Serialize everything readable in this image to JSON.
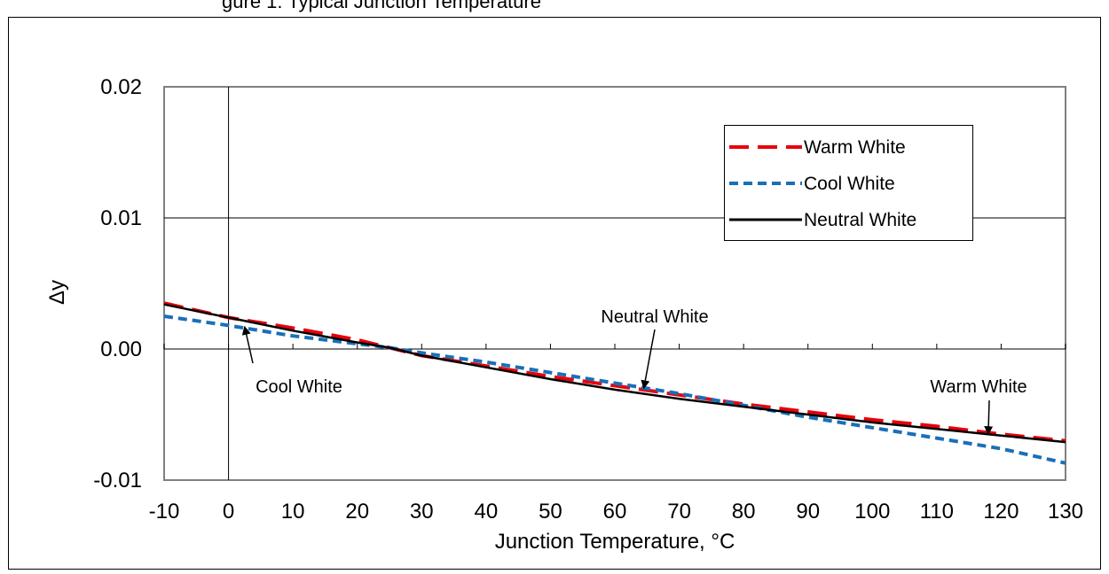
{
  "chart_data": {
    "type": "line",
    "title": "",
    "xlabel": "Junction Temperature, °C",
    "ylabel": "Δy",
    "xlim": [
      -10,
      130
    ],
    "ylim": [
      -0.01,
      0.02
    ],
    "x_ticks": [
      -10,
      0,
      10,
      20,
      30,
      40,
      50,
      60,
      70,
      80,
      90,
      100,
      110,
      120,
      130
    ],
    "x_tick_labels": [
      "-10",
      "0",
      "10",
      "20",
      "30",
      "40",
      "50",
      "60",
      "70",
      "80",
      "90",
      "100",
      "110",
      "120",
      "130"
    ],
    "y_ticks": [
      -0.01,
      0.0,
      0.01,
      0.02
    ],
    "y_tick_labels": [
      "-0.01",
      "0.00",
      "0.01",
      "0.02"
    ],
    "grid": "horizontal",
    "legend_position": "top-right",
    "series": [
      {
        "name": "Warm White",
        "color": "#e8000b",
        "dash": "long-dash",
        "x": [
          -10,
          0,
          10,
          20,
          25,
          30,
          40,
          50,
          60,
          70,
          80,
          90,
          100,
          110,
          120,
          130
        ],
        "y": [
          0.0035,
          0.0024,
          0.0016,
          0.0007,
          0.0001,
          -0.0005,
          -0.0013,
          -0.0021,
          -0.0028,
          -0.0035,
          -0.0042,
          -0.0048,
          -0.0054,
          -0.0059,
          -0.0065,
          -0.007
        ]
      },
      {
        "name": "Cool White",
        "color": "#1a6fb8",
        "dash": "short-dash",
        "x": [
          -10,
          0,
          10,
          20,
          25,
          30,
          40,
          50,
          60,
          70,
          80,
          90,
          100,
          110,
          120,
          130
        ],
        "y": [
          0.0025,
          0.0018,
          0.001,
          0.0004,
          0.0001,
          -0.0003,
          -0.001,
          -0.0018,
          -0.0026,
          -0.0034,
          -0.0043,
          -0.0052,
          -0.006,
          -0.0068,
          -0.0076,
          -0.0087
        ]
      },
      {
        "name": "Neutral White",
        "color": "#000000",
        "dash": "solid",
        "x": [
          -10,
          0,
          10,
          20,
          25,
          30,
          40,
          50,
          60,
          70,
          80,
          90,
          100,
          110,
          120,
          130
        ],
        "y": [
          0.0034,
          0.0024,
          0.0014,
          0.0005,
          0.0001,
          -0.0005,
          -0.0014,
          -0.0023,
          -0.0031,
          -0.0038,
          -0.0044,
          -0.005,
          -0.0056,
          -0.0061,
          -0.0066,
          -0.0071
        ]
      }
    ],
    "annotations": [
      {
        "text": "Cool White",
        "target_x": 2.5,
        "target_y": 0.0017
      },
      {
        "text": "Neutral White",
        "target_x": 64.5,
        "target_y": -0.003
      },
      {
        "text": "Warm White",
        "target_x": 118,
        "target_y": -0.0065
      }
    ],
    "top_clipped_text": "gure 1: Typical Junction Temperature"
  }
}
